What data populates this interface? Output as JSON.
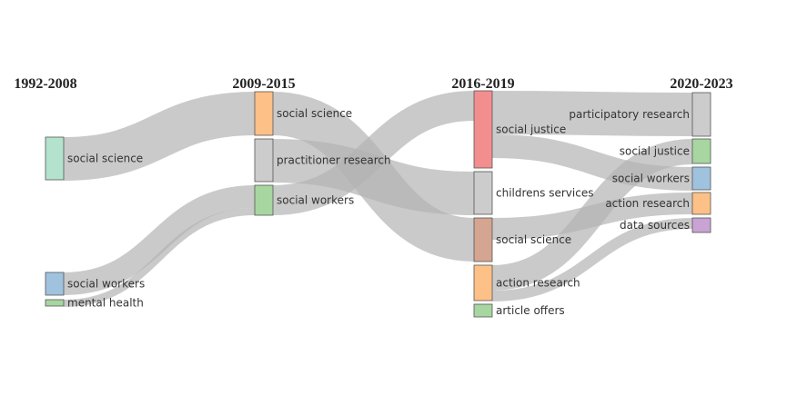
{
  "periods": [
    "1992-2008",
    "2009-2015",
    "2016-2019",
    "2020-2023"
  ],
  "nodes": [
    {
      "id": "a1",
      "col": 0,
      "label": "social science",
      "value": 48,
      "color": "#b3e2cd"
    },
    {
      "id": "a2",
      "col": 0,
      "label": "social workers",
      "value": 25,
      "color": "#9fc2de"
    },
    {
      "id": "a3",
      "col": 0,
      "label": "mental health",
      "value": 8,
      "color": "#a7d6a0"
    },
    {
      "id": "b1",
      "col": 1,
      "label": "social science",
      "value": 48,
      "color": "#fdc086"
    },
    {
      "id": "b2",
      "col": 1,
      "label": "practitioner research",
      "value": 48,
      "color": "#cccccc"
    },
    {
      "id": "b3",
      "col": 1,
      "label": "social workers",
      "value": 33,
      "color": "#a7d6a0"
    },
    {
      "id": "c1",
      "col": 2,
      "label": "social justice",
      "value": 86,
      "color": "#f28e8e"
    },
    {
      "id": "c2",
      "col": 2,
      "label": "childrens services",
      "value": 48,
      "color": "#cccccc"
    },
    {
      "id": "c3",
      "col": 2,
      "label": "social science",
      "value": 48,
      "color": "#d4a590"
    },
    {
      "id": "c4",
      "col": 2,
      "label": "action research",
      "value": 40,
      "color": "#fdc086"
    },
    {
      "id": "c5",
      "col": 2,
      "label": "article offers",
      "value": 14,
      "color": "#a7d6a0"
    },
    {
      "id": "d1",
      "col": 3,
      "label": "participatory research",
      "value": 48,
      "color": "#cccccc"
    },
    {
      "id": "d2",
      "col": 3,
      "label": "social justice",
      "value": 28,
      "color": "#a7d6a0"
    },
    {
      "id": "d3",
      "col": 3,
      "label": "social workers",
      "value": 26,
      "color": "#9fc2de"
    },
    {
      "id": "d4",
      "col": 3,
      "label": "action research",
      "value": 24,
      "color": "#fdc086"
    },
    {
      "id": "d5",
      "col": 3,
      "label": "data sources",
      "value": 16,
      "color": "#c9a3d4"
    }
  ],
  "links": [
    {
      "source": "a1",
      "target": "b1",
      "value": 48
    },
    {
      "source": "a2",
      "target": "b3",
      "value": 25
    },
    {
      "source": "a3",
      "target": "b3",
      "value": 8
    },
    {
      "source": "b1",
      "target": "c3",
      "value": 48
    },
    {
      "source": "b2",
      "target": "c2",
      "value": 48
    },
    {
      "source": "b3",
      "target": "c1",
      "value": 33
    },
    {
      "source": "c1",
      "target": "d1",
      "value": 48
    },
    {
      "source": "c1",
      "target": "d3",
      "value": 26
    },
    {
      "source": "c3",
      "target": "d4",
      "value": 24
    },
    {
      "source": "c4",
      "target": "d2",
      "value": 28
    },
    {
      "source": "c4",
      "target": "d5",
      "value": 12
    }
  ]
}
